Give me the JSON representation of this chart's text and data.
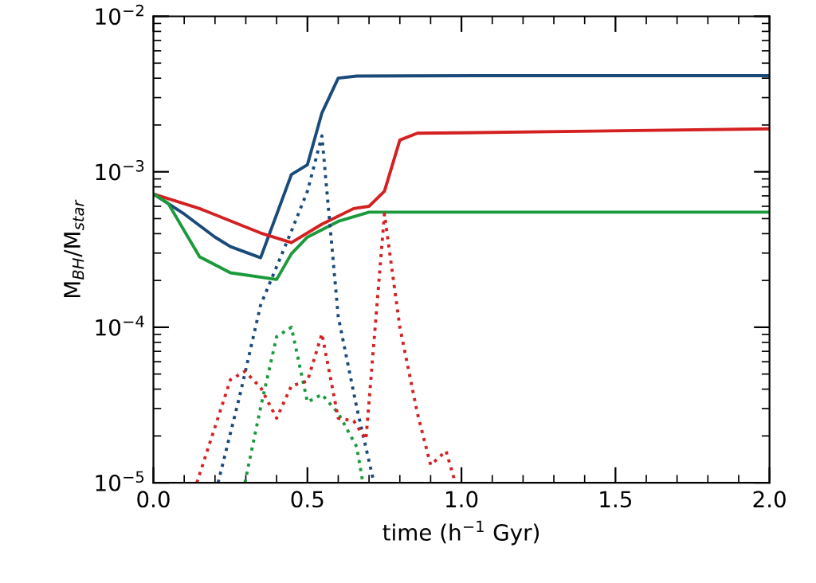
{
  "chart_data": {
    "type": "line",
    "xlabel": "time (h$^{−1}$ Gyr)",
    "ylabel": "M$_{BH}$/M$_{star}$",
    "log": "y",
    "grid": false,
    "legend": false,
    "marker": "none",
    "xlim": [
      0.0,
      2.0
    ],
    "xticks": [
      {
        "value": 0.0,
        "label": "0.0"
      },
      {
        "value": 0.5,
        "label": "0.5"
      },
      {
        "value": 1.0,
        "label": "1.0"
      },
      {
        "value": 1.5,
        "label": "1.5"
      },
      {
        "value": 2.0,
        "label": "2.0"
      }
    ],
    "ylim": [
      1e-05,
      0.01
    ],
    "yticks": [
      {
        "value": 1e-05,
        "label": "10$^{−5}$"
      },
      {
        "value": 0.0001,
        "label": "10$^{−4}$"
      },
      {
        "value": 0.001,
        "label": "10$^{−3}$"
      },
      {
        "value": 0.01,
        "label": "10$^{−2}$"
      }
    ],
    "series": [
      {
        "color": "#1a4a7a",
        "line_style": "solid",
        "x": [
          0,
          0.1,
          0.2,
          0.25,
          0.348,
          0.448,
          0.5,
          0.547,
          0.6,
          0.66,
          1.055,
          2.0
        ],
        "values": [
          0.00072,
          0.000535,
          0.00038,
          0.00033,
          0.00028,
          0.00096,
          0.00111,
          0.00239,
          0.004,
          0.00413,
          0.00415,
          0.00415
        ]
      },
      {
        "color": "#d42020",
        "line_style": "solid",
        "x": [
          0,
          0.15,
          0.348,
          0.448,
          0.547,
          0.65,
          0.7,
          0.75,
          0.8,
          0.857,
          1.0,
          2.0
        ],
        "values": [
          0.00072,
          0.00058,
          0.000404,
          0.00035,
          0.00046,
          0.00058,
          0.0006,
          0.00075,
          0.0016,
          0.00177,
          0.00178,
          0.00189
        ]
      },
      {
        "color": "#1a9a3a",
        "line_style": "solid",
        "x": [
          0,
          0.047,
          0.15,
          0.25,
          0.4,
          0.448,
          0.5,
          0.6,
          0.7,
          2.0
        ],
        "values": [
          0.00072,
          0.00063,
          0.000284,
          0.000224,
          0.000203,
          0.000297,
          0.00038,
          0.00048,
          0.00055,
          0.00055
        ]
      },
      {
        "color": "#1a4a7a",
        "line_style": "dotted",
        "x": [
          0.21,
          0.28,
          0.348,
          0.448,
          0.5,
          0.547,
          0.6,
          0.66,
          0.716
        ],
        "values": [
          1e-05,
          3.6e-05,
          0.000139,
          0.000415,
          0.00075,
          0.0017,
          0.000117,
          3.05e-05,
          1e-05
        ]
      },
      {
        "color": "#1a9a3a",
        "line_style": "dotted",
        "x": [
          0.297,
          0.348,
          0.4,
          0.448,
          0.5,
          0.547,
          0.6,
          0.66,
          0.68
        ],
        "values": [
          1e-05,
          3.05e-05,
          8.7e-05,
          0.0001,
          3.3e-05,
          3.7e-05,
          2.8e-05,
          1.7e-05,
          1e-05
        ]
      },
      {
        "color": "#d42020",
        "line_style": "dotted",
        "x": [
          0.141,
          0.25,
          0.297,
          0.348,
          0.4,
          0.448,
          0.5,
          0.547,
          0.6,
          0.65,
          0.69,
          0.75,
          0.8,
          0.857,
          0.9,
          0.95,
          0.98
        ],
        "values": [
          1e-05,
          4.6e-05,
          5.2e-05,
          4.1e-05,
          2.6e-05,
          4.2e-05,
          4.5e-05,
          9.1e-05,
          2.6e-05,
          2.5e-05,
          1.9e-05,
          0.000535,
          0.0001,
          2.8e-05,
          1.3e-05,
          1.6e-05,
          1e-05
        ]
      }
    ]
  }
}
